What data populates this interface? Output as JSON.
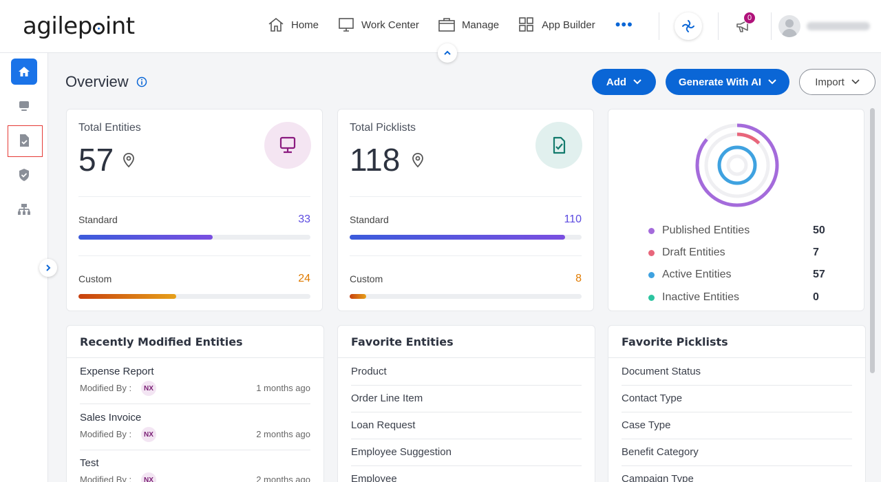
{
  "header": {
    "nav": [
      {
        "label": "Home",
        "icon": "home-icon"
      },
      {
        "label": "Work Center",
        "icon": "monitor-icon"
      },
      {
        "label": "Manage",
        "icon": "briefcase-icon"
      },
      {
        "label": "App Builder",
        "icon": "grid-icon"
      }
    ],
    "more": "•••",
    "notification_count": "0",
    "accent": "#0a66d6"
  },
  "page": {
    "title": "Overview",
    "add_label": "Add",
    "generate_label": "Generate With AI",
    "import_label": "Import"
  },
  "entities": {
    "title": "Total Entities",
    "total": "57",
    "standard_label": "Standard",
    "standard_value": "33",
    "standard_fraction": 0.58,
    "custom_label": "Custom",
    "custom_value": "24",
    "custom_fraction": 0.42
  },
  "picklists": {
    "title": "Total Picklists",
    "total": "118",
    "standard_label": "Standard",
    "standard_value": "110",
    "standard_fraction": 0.93,
    "custom_label": "Custom",
    "custom_value": "8",
    "custom_fraction": 0.07
  },
  "status": {
    "items": [
      {
        "label": "Published Entities",
        "value": "50",
        "color": "#a46bdb"
      },
      {
        "label": "Draft Entities",
        "value": "7",
        "color": "#e8667b"
      },
      {
        "label": "Active Entities",
        "value": "57",
        "color": "#3fa2e0"
      },
      {
        "label": "Inactive Entities",
        "value": "0",
        "color": "#2cc4a0"
      }
    ]
  },
  "recent": {
    "title": "Recently Modified Entities",
    "modified_by_label": "Modified By :",
    "items": [
      {
        "name": "Expense Report",
        "user": "NX",
        "time": "1 months ago"
      },
      {
        "name": "Sales Invoice",
        "user": "NX",
        "time": "2 months ago"
      },
      {
        "name": "Test",
        "user": "NX",
        "time": "2 months ago"
      }
    ]
  },
  "favorite_entities": {
    "title": "Favorite Entities",
    "items": [
      "Product",
      "Order Line Item",
      "Loan Request",
      "Employee Suggestion",
      "Employee"
    ]
  },
  "favorite_picklists": {
    "title": "Favorite Picklists",
    "items": [
      "Document Status",
      "Contact Type",
      "Case Type",
      "Benefit Category",
      "Campaign Type"
    ]
  }
}
